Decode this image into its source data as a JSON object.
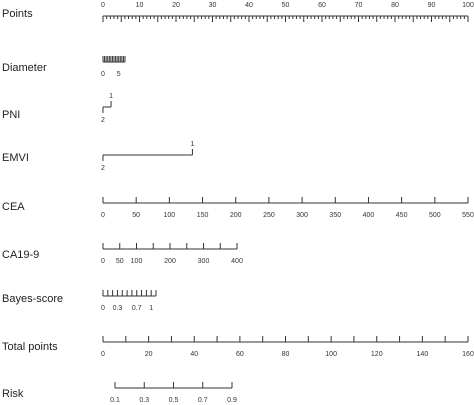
{
  "chart_data": {
    "type": "nomogram",
    "rows": [
      {
        "id": "points",
        "label": "Points",
        "axis": {
          "min": 0,
          "max": 100,
          "labels": [
            0,
            10,
            20,
            30,
            40,
            50,
            60,
            70,
            80,
            90,
            100
          ],
          "minor": 1,
          "major": 5
        },
        "labels_above": true
      },
      {
        "id": "diameter",
        "label": "Diameter",
        "axis": {
          "min": 0,
          "max": 7,
          "labels": [
            0,
            5
          ],
          "minor": 0.5,
          "major": 0.5
        },
        "labels_above": false
      },
      {
        "id": "pni",
        "label": "PNI",
        "categorical": true,
        "levels": [
          {
            "text": "1",
            "points": 2.2,
            "side": "above"
          },
          {
            "text": "2",
            "points": 0,
            "side": "below"
          }
        ]
      },
      {
        "id": "emvi",
        "label": "EMVI",
        "categorical": true,
        "levels": [
          {
            "text": "1",
            "points": 24.5,
            "side": "above"
          },
          {
            "text": "2",
            "points": 0,
            "side": "below"
          }
        ]
      },
      {
        "id": "cea",
        "label": "CEA",
        "axis": {
          "min": 0,
          "max": 550,
          "labels": [
            0,
            50,
            100,
            150,
            200,
            250,
            300,
            350,
            400,
            450,
            500,
            550
          ],
          "minor": 50,
          "major": 50
        },
        "labels_above": false
      },
      {
        "id": "ca199",
        "label": "CA19-9",
        "axis": {
          "min": 0,
          "max": 400,
          "labels": [
            0,
            50,
            100,
            200,
            300,
            400
          ],
          "minor": 50,
          "major": 50
        },
        "labels_above": false
      },
      {
        "id": "bayes",
        "label": "Bayes-score",
        "axis": {
          "min": 0,
          "max": 1.1,
          "labels": [
            0,
            0.3,
            0.7,
            1
          ],
          "minor": 0.1,
          "major": 0.1
        },
        "labels_above": false
      },
      {
        "id": "total",
        "label": "Total points",
        "axis": {
          "min": 0,
          "max": 160,
          "labels": [
            0,
            20,
            40,
            60,
            80,
            100,
            120,
            140,
            160
          ],
          "minor": 10,
          "major": 10
        },
        "labels_above": false
      },
      {
        "id": "risk",
        "label": "Risk",
        "axis": {
          "min": 0.1,
          "max": 0.9,
          "labels": [
            0.1,
            0.3,
            0.5,
            0.7,
            0.9
          ]
        },
        "labels_above": false
      }
    ]
  }
}
